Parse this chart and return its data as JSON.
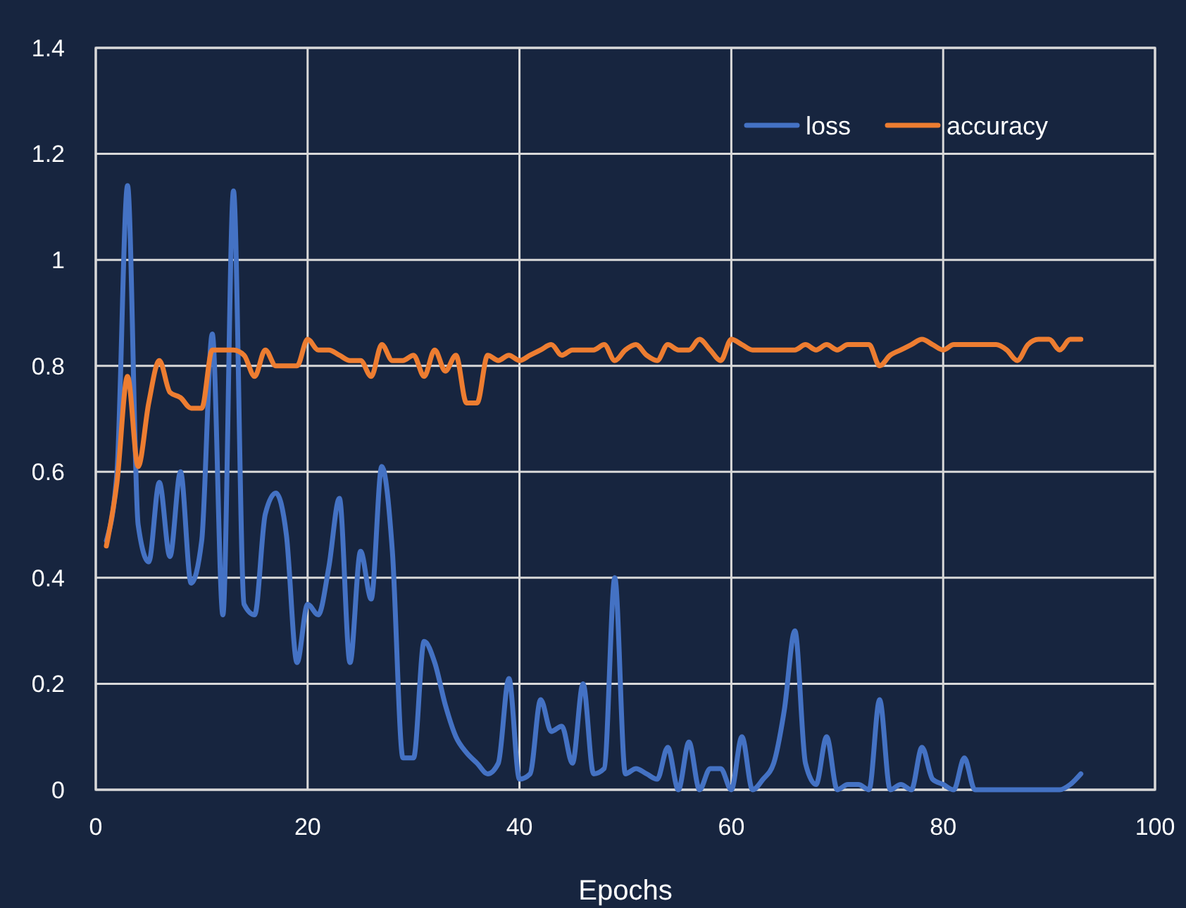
{
  "chart_data": {
    "type": "line",
    "xlabel": "Epochs",
    "x": [
      1,
      2,
      3,
      4,
      5,
      6,
      7,
      8,
      9,
      10,
      11,
      12,
      13,
      14,
      15,
      16,
      17,
      18,
      19,
      20,
      21,
      22,
      23,
      24,
      25,
      26,
      27,
      28,
      29,
      30,
      31,
      32,
      33,
      34,
      35,
      36,
      37,
      38,
      39,
      40,
      41,
      42,
      43,
      44,
      45,
      46,
      47,
      48,
      49,
      50,
      51,
      52,
      53,
      54,
      55,
      56,
      57,
      58,
      59,
      60,
      61,
      62,
      63,
      64,
      65,
      66,
      67,
      68,
      69,
      70,
      71,
      72,
      73,
      74,
      75,
      76,
      77,
      78,
      79,
      80,
      81,
      82,
      83,
      84,
      85,
      86,
      87,
      88,
      89,
      90,
      91,
      92,
      93
    ],
    "series": [
      {
        "name": "loss",
        "color": "#4472c4",
        "values": [
          0.47,
          0.6,
          1.14,
          0.5,
          0.43,
          0.58,
          0.44,
          0.6,
          0.39,
          0.47,
          0.86,
          0.33,
          1.13,
          0.35,
          0.33,
          0.52,
          0.56,
          0.48,
          0.24,
          0.35,
          0.33,
          0.42,
          0.55,
          0.24,
          0.45,
          0.36,
          0.61,
          0.45,
          0.06,
          0.06,
          0.28,
          0.24,
          0.16,
          0.1,
          0.07,
          0.05,
          0.03,
          0.05,
          0.21,
          0.02,
          0.03,
          0.17,
          0.11,
          0.12,
          0.05,
          0.2,
          0.03,
          0.04,
          0.4,
          0.03,
          0.04,
          0.03,
          0.02,
          0.08,
          0.0,
          0.09,
          0.0,
          0.04,
          0.04,
          0.0,
          0.1,
          0.0,
          0.02,
          0.05,
          0.15,
          0.3,
          0.05,
          0.01,
          0.1,
          0.0,
          0.01,
          0.01,
          0.0,
          0.17,
          0.0,
          0.01,
          0.0,
          0.08,
          0.02,
          0.01,
          0.0,
          0.06,
          0.0,
          0.0,
          0.0,
          0.0,
          0.0,
          0.0,
          0.0,
          0.0,
          0.0,
          0.01,
          0.03
        ]
      },
      {
        "name": "accuracy",
        "color": "#ed7d31",
        "values": [
          0.46,
          0.58,
          0.78,
          0.61,
          0.73,
          0.81,
          0.75,
          0.74,
          0.72,
          0.72,
          0.83,
          0.83,
          0.83,
          0.82,
          0.78,
          0.83,
          0.8,
          0.8,
          0.8,
          0.85,
          0.83,
          0.83,
          0.82,
          0.81,
          0.81,
          0.78,
          0.84,
          0.81,
          0.81,
          0.82,
          0.78,
          0.83,
          0.79,
          0.82,
          0.73,
          0.73,
          0.82,
          0.81,
          0.82,
          0.81,
          0.82,
          0.83,
          0.84,
          0.82,
          0.83,
          0.83,
          0.83,
          0.84,
          0.81,
          0.83,
          0.84,
          0.82,
          0.81,
          0.84,
          0.83,
          0.83,
          0.85,
          0.83,
          0.81,
          0.85,
          0.84,
          0.83,
          0.83,
          0.83,
          0.83,
          0.83,
          0.84,
          0.83,
          0.84,
          0.83,
          0.84,
          0.84,
          0.84,
          0.8,
          0.82,
          0.83,
          0.84,
          0.85,
          0.84,
          0.83,
          0.84,
          0.84,
          0.84,
          0.84,
          0.84,
          0.83,
          0.81,
          0.84,
          0.85,
          0.85,
          0.83,
          0.85,
          0.85
        ]
      }
    ],
    "xlim": [
      0,
      100
    ],
    "xticks": [
      0,
      20,
      40,
      60,
      80,
      100
    ],
    "ylim": [
      0,
      1.4
    ],
    "yticks": [
      0,
      0.2,
      0.4,
      0.6,
      0.8,
      1,
      1.2,
      1.4
    ],
    "grid": true,
    "legend": "top right",
    "marker": "none",
    "line_style": "solid"
  }
}
